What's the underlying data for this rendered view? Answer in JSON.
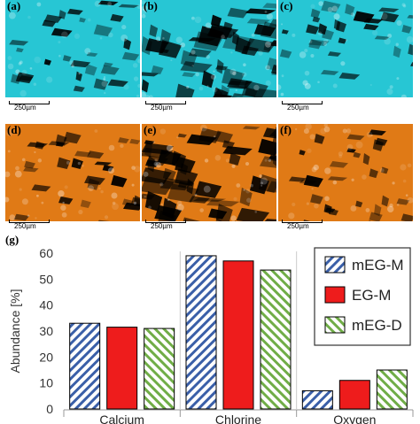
{
  "panels": [
    {
      "label": "(a)",
      "scale": "250µm",
      "color": "#27c6d4"
    },
    {
      "label": "(b)",
      "scale": "250µm",
      "color": "#27c6d4"
    },
    {
      "label": "(c)",
      "scale": "250µm",
      "color": "#27c6d4"
    },
    {
      "label": "(d)",
      "scale": "250µm",
      "color": "#e07a16"
    },
    {
      "label": "(e)",
      "scale": "250µm",
      "color": "#e07a16"
    },
    {
      "label": "(f)",
      "scale": "250µm",
      "color": "#e07a16"
    }
  ],
  "chart_label": "(g)",
  "chart_data": {
    "type": "bar",
    "categories": [
      "Calcium",
      "Chlorine",
      "Oxygen"
    ],
    "series": [
      {
        "name": "mEG-M",
        "values": [
          33,
          59,
          7
        ],
        "color": "#3a5fa8",
        "pattern": "hatch-back"
      },
      {
        "name": "EG-M",
        "values": [
          31.5,
          57,
          11
        ],
        "color": "#ee1c1c",
        "pattern": "solid"
      },
      {
        "name": "mEG-D",
        "values": [
          31,
          53.5,
          15
        ],
        "color": "#70ad47",
        "pattern": "hatch-forward"
      }
    ],
    "ylabel": "Abundance [%]",
    "ylim": [
      0,
      60
    ],
    "yticks": [
      0,
      10,
      20,
      30,
      40,
      50,
      60
    ],
    "legend": "top-right"
  }
}
